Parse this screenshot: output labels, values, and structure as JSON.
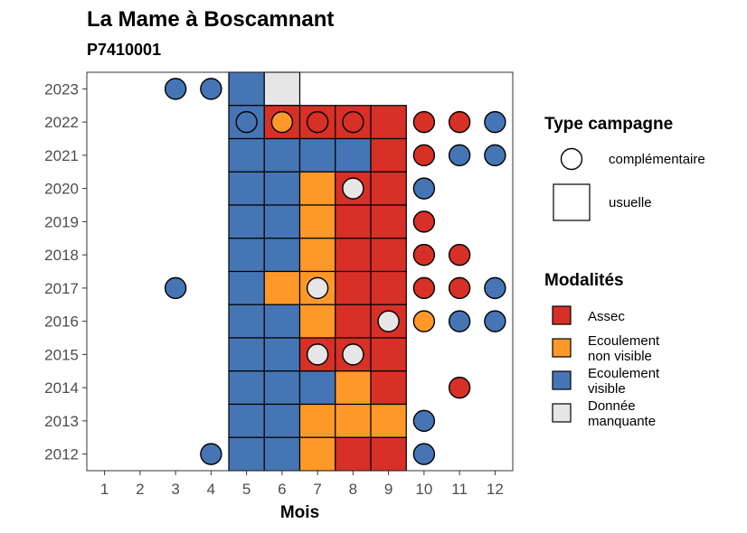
{
  "chart_data": {
    "type": "heatmap",
    "title": "La Mame à Boscamnant",
    "subtitle": "P7410001",
    "xlabel": "Mois",
    "ylabel": "",
    "x_ticks": [
      1,
      2,
      3,
      4,
      5,
      6,
      7,
      8,
      9,
      10,
      11,
      12
    ],
    "y_ticks": [
      2012,
      2013,
      2014,
      2015,
      2016,
      2017,
      2018,
      2019,
      2020,
      2021,
      2022,
      2023
    ],
    "xlim": [
      0.5,
      12.5
    ],
    "ylim": [
      2011.5,
      2023.5
    ],
    "legend_shape": {
      "title": "Type campagne",
      "entries": [
        {
          "key": "complementaire",
          "label": "complémentaire",
          "shape": "circle"
        },
        {
          "key": "usuelle",
          "label": "usuelle",
          "shape": "square"
        }
      ]
    },
    "legend_fill": {
      "title": "Modalités",
      "entries": [
        {
          "key": "A",
          "label_lines": [
            "Assec"
          ],
          "color": "#d73027"
        },
        {
          "key": "E",
          "label_lines": [
            "Ecoulement",
            "non visible"
          ],
          "color": "#fe9929"
        },
        {
          "key": "V",
          "label_lines": [
            "Ecoulement",
            "visible"
          ],
          "color": "#4575b4"
        },
        {
          "key": "M",
          "label_lines": [
            "Donnée",
            "manquante"
          ],
          "color": "#e6e6e6"
        }
      ]
    },
    "usuelle": [
      {
        "year": 2023,
        "cells": [
          [
            5,
            "V"
          ],
          [
            6,
            "M"
          ]
        ]
      },
      {
        "year": 2022,
        "cells": [
          [
            5,
            "V"
          ],
          [
            6,
            "A"
          ],
          [
            7,
            "A"
          ],
          [
            8,
            "A"
          ],
          [
            9,
            "A"
          ]
        ]
      },
      {
        "year": 2021,
        "cells": [
          [
            5,
            "V"
          ],
          [
            6,
            "V"
          ],
          [
            7,
            "V"
          ],
          [
            8,
            "V"
          ],
          [
            9,
            "A"
          ]
        ]
      },
      {
        "year": 2020,
        "cells": [
          [
            5,
            "V"
          ],
          [
            6,
            "V"
          ],
          [
            7,
            "E"
          ],
          [
            8,
            "A"
          ],
          [
            9,
            "A"
          ]
        ]
      },
      {
        "year": 2019,
        "cells": [
          [
            5,
            "V"
          ],
          [
            6,
            "V"
          ],
          [
            7,
            "E"
          ],
          [
            8,
            "A"
          ],
          [
            9,
            "A"
          ]
        ]
      },
      {
        "year": 2018,
        "cells": [
          [
            5,
            "V"
          ],
          [
            6,
            "V"
          ],
          [
            7,
            "E"
          ],
          [
            8,
            "A"
          ],
          [
            9,
            "A"
          ]
        ]
      },
      {
        "year": 2017,
        "cells": [
          [
            5,
            "V"
          ],
          [
            6,
            "E"
          ],
          [
            7,
            "E"
          ],
          [
            8,
            "A"
          ],
          [
            9,
            "A"
          ]
        ]
      },
      {
        "year": 2016,
        "cells": [
          [
            5,
            "V"
          ],
          [
            6,
            "V"
          ],
          [
            7,
            "E"
          ],
          [
            8,
            "A"
          ],
          [
            9,
            "A"
          ]
        ]
      },
      {
        "year": 2015,
        "cells": [
          [
            5,
            "V"
          ],
          [
            6,
            "V"
          ],
          [
            7,
            "A"
          ],
          [
            8,
            "A"
          ],
          [
            9,
            "A"
          ]
        ]
      },
      {
        "year": 2014,
        "cells": [
          [
            5,
            "V"
          ],
          [
            6,
            "V"
          ],
          [
            7,
            "V"
          ],
          [
            8,
            "E"
          ],
          [
            9,
            "A"
          ]
        ]
      },
      {
        "year": 2013,
        "cells": [
          [
            5,
            "V"
          ],
          [
            6,
            "V"
          ],
          [
            7,
            "E"
          ],
          [
            8,
            "E"
          ],
          [
            9,
            "E"
          ]
        ]
      },
      {
        "year": 2012,
        "cells": [
          [
            5,
            "V"
          ],
          [
            6,
            "V"
          ],
          [
            7,
            "E"
          ],
          [
            8,
            "A"
          ],
          [
            9,
            "A"
          ]
        ]
      }
    ],
    "complementaire": [
      {
        "year": 2023,
        "points": [
          [
            3,
            "V"
          ],
          [
            4,
            "V"
          ]
        ]
      },
      {
        "year": 2022,
        "points": [
          [
            5,
            "V"
          ],
          [
            6,
            "E"
          ],
          [
            7,
            "A"
          ],
          [
            8,
            "A"
          ],
          [
            10,
            "A"
          ],
          [
            11,
            "A"
          ],
          [
            12,
            "V"
          ]
        ]
      },
      {
        "year": 2021,
        "points": [
          [
            10,
            "A"
          ],
          [
            11,
            "V"
          ],
          [
            12,
            "V"
          ]
        ]
      },
      {
        "year": 2020,
        "points": [
          [
            8,
            "M"
          ],
          [
            10,
            "V"
          ]
        ]
      },
      {
        "year": 2019,
        "points": [
          [
            10,
            "A"
          ]
        ]
      },
      {
        "year": 2018,
        "points": [
          [
            10,
            "A"
          ],
          [
            11,
            "A"
          ]
        ]
      },
      {
        "year": 2017,
        "points": [
          [
            3,
            "V"
          ],
          [
            7,
            "M"
          ],
          [
            10,
            "A"
          ],
          [
            11,
            "A"
          ],
          [
            12,
            "V"
          ]
        ]
      },
      {
        "year": 2016,
        "points": [
          [
            9,
            "M"
          ],
          [
            10,
            "E"
          ],
          [
            11,
            "V"
          ],
          [
            12,
            "V"
          ]
        ]
      },
      {
        "year": 2015,
        "points": [
          [
            7,
            "M"
          ],
          [
            8,
            "M"
          ]
        ]
      },
      {
        "year": 2014,
        "points": [
          [
            11,
            "A"
          ]
        ]
      },
      {
        "year": 2013,
        "points": [
          [
            10,
            "V"
          ]
        ]
      },
      {
        "year": 2012,
        "points": [
          [
            4,
            "V"
          ],
          [
            10,
            "V"
          ]
        ]
      }
    ]
  }
}
